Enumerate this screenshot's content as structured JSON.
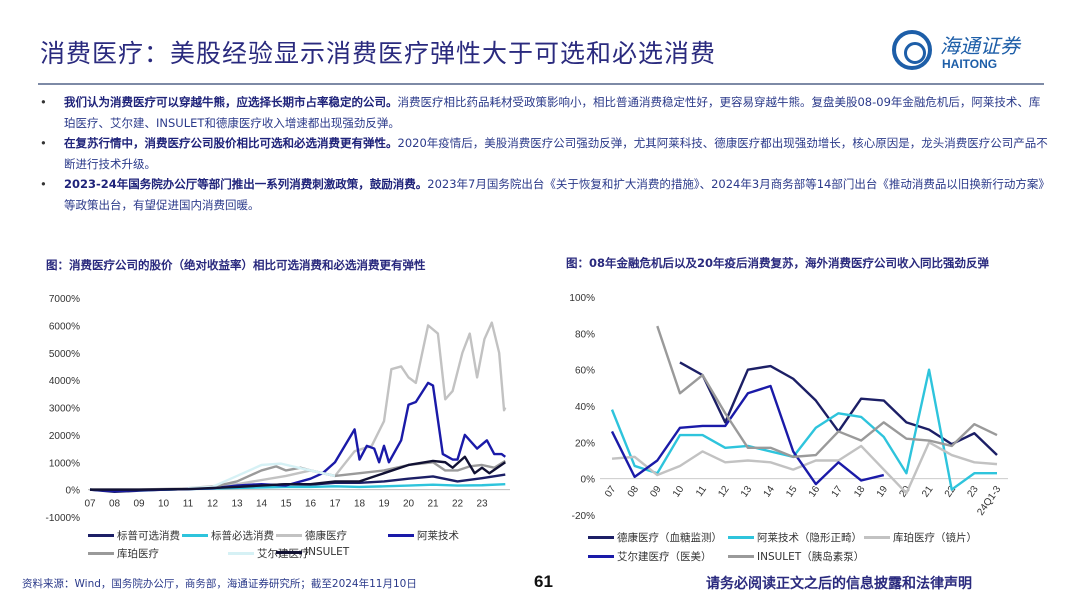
{
  "header": {
    "title": "消费医疗：美股经验显示消费医疗弹性大于可选和必选消费",
    "logo_cn": "海通证券",
    "logo_en": "HAITONG"
  },
  "bullets": [
    {
      "bold": "我们认为消费医疗可以穿越牛熊，应选择长期市占率稳定的公司。",
      "text": "消费医疗相比药品耗材受政策影响小，相比普通消费稳定性好，更容易穿越牛熊。复盘美股08-09年金融危机后，阿莱技术、库珀医疗、艾尔建、INSULET和德康医疗收入增速都出现强劲反弹。"
    },
    {
      "bold": "在复苏行情中，消费医疗公司股价相比可选和必选消费更有弹性。",
      "text": "2020年疫情后，美股消费医疗公司强劲反弹，尤其阿莱科技、德康医疗都出现强劲增长，核心原因是，龙头消费医疗公司产品不断进行技术升级。"
    },
    {
      "bold": "2023-24年国务院办公厅等部门推出一系列消费刺激政策，鼓励消费。",
      "text": "2023年7月国务院出台《关于恢复和扩大消费的措施》、2024年3月商务部等14部门出台《推动消费品以旧换新行动方案》等政策出台，有望促进国内消费回暖。"
    }
  ],
  "chart_data": [
    {
      "type": "line",
      "title": "图：消费医疗公司的股价（绝对收益率）相比可选消费和必选消费更有弹性",
      "xlabel": "",
      "ylabel": "",
      "categories": [
        "07",
        "08",
        "09",
        "10",
        "11",
        "12",
        "13",
        "14",
        "15",
        "16",
        "17",
        "18",
        "19",
        "20",
        "21",
        "22",
        "23"
      ],
      "yticks": [
        "-1000%",
        "0%",
        "1000%",
        "2000%",
        "3000%",
        "4000%",
        "5000%",
        "6000%",
        "7000%"
      ],
      "ylim": [
        -1000,
        7000
      ],
      "grid": false,
      "legend": "bottom",
      "series": [
        {
          "name": "标普可选消费",
          "color": "#1c1f66",
          "x": [
            7,
            8,
            9,
            10,
            11,
            12,
            13,
            14,
            15,
            16,
            17,
            18,
            19,
            20,
            21,
            22,
            23,
            24
          ],
          "values": [
            0,
            -80,
            -40,
            0,
            20,
            50,
            120,
            150,
            200,
            180,
            250,
            250,
            300,
            400,
            480,
            300,
            420,
            550
          ]
        },
        {
          "name": "标普必选消费",
          "color": "#2ec4dc",
          "x": [
            7,
            8,
            9,
            10,
            11,
            12,
            13,
            14,
            15,
            16,
            17,
            18,
            19,
            20,
            21,
            22,
            23,
            24
          ],
          "values": [
            0,
            -30,
            -20,
            0,
            20,
            40,
            60,
            80,
            100,
            100,
            120,
            100,
            120,
            150,
            180,
            150,
            160,
            200
          ]
        },
        {
          "name": "德康医疗",
          "color": "#c2c2c2",
          "x": [
            7,
            9,
            11,
            13,
            15,
            16,
            17,
            17.8,
            18.5,
            19,
            19.3,
            19.7,
            20,
            20.3,
            20.8,
            21.2,
            21.5,
            21.8,
            22.2,
            22.5,
            22.8,
            23.1,
            23.4,
            23.7,
            23.9,
            24
          ],
          "values": [
            0,
            0,
            50,
            200,
            500,
            700,
            500,
            1400,
            1600,
            2500,
            4400,
            4500,
            4100,
            3900,
            6000,
            5700,
            3300,
            3600,
            5000,
            5700,
            4100,
            5500,
            6100,
            5000,
            2900,
            3000
          ]
        },
        {
          "name": "阿莱技术",
          "color": "#1a1aa8",
          "x": [
            7,
            8,
            9,
            10,
            11,
            12,
            13,
            14,
            15,
            16,
            16.5,
            17,
            17.8,
            18,
            18.3,
            18.6,
            18.8,
            19,
            19.2,
            19.7,
            20,
            20.3,
            20.8,
            21,
            21.4,
            21.8,
            22,
            22.3,
            22.8,
            23.2,
            23.5,
            23.8,
            24
          ],
          "values": [
            0,
            -50,
            -20,
            0,
            20,
            50,
            150,
            200,
            150,
            400,
            600,
            1000,
            2200,
            1100,
            1600,
            1500,
            1000,
            1600,
            1000,
            1800,
            3100,
            3200,
            3900,
            3800,
            1300,
            1100,
            1100,
            2000,
            1500,
            1800,
            1300,
            1300,
            1200
          ]
        },
        {
          "name": "库珀医疗",
          "color": "#9a9a9a",
          "x": [
            12,
            13,
            14,
            14.6,
            15,
            15.6,
            16,
            17,
            18,
            19,
            20,
            21,
            21.5,
            22,
            22.5,
            23,
            23.5,
            24
          ],
          "values": [
            100,
            300,
            700,
            850,
            700,
            800,
            700,
            500,
            600,
            700,
            900,
            1000,
            700,
            700,
            850,
            900,
            800,
            1050
          ]
        },
        {
          "name": "艾尔建医疗",
          "color": "#d6f1f5",
          "x": [
            11,
            12,
            13,
            14,
            14.8,
            15.5,
            16,
            17
          ],
          "values": [
            50,
            100,
            500,
            900,
            950,
            800,
            700,
            500
          ]
        },
        {
          "name": "INSULET",
          "color": "#111133",
          "x": [
            7,
            9,
            11,
            13,
            15,
            16,
            17,
            18,
            19,
            20,
            21,
            21.5,
            21.8,
            22.3,
            22.7,
            23,
            23.3,
            24
          ],
          "values": [
            0,
            0,
            20,
            100,
            200,
            200,
            300,
            300,
            600,
            900,
            1050,
            1000,
            800,
            1200,
            600,
            800,
            600,
            1000
          ]
        }
      ]
    },
    {
      "type": "line",
      "title": "图：08年金融危机后以及20年疫后消费复苏，海外消费医疗公司收入同比强劲反弹",
      "xlabel": "",
      "ylabel": "",
      "categories": [
        "07",
        "08",
        "09",
        "10",
        "11",
        "12",
        "13",
        "14",
        "15",
        "16",
        "17",
        "18",
        "19",
        "20",
        "21",
        "22",
        "23",
        "24Q1-3"
      ],
      "yticks": [
        "-20%",
        "0%",
        "20%",
        "40%",
        "60%",
        "80%",
        "100%"
      ],
      "ylim": [
        -20,
        100
      ],
      "grid": false,
      "legend": "bottom",
      "series": [
        {
          "name": "德康医疗（血糖监测）",
          "color": "#1c1f66",
          "values": [
            null,
            null,
            null,
            64,
            57,
            31,
            60,
            62,
            55,
            43,
            26,
            44,
            43,
            31,
            27,
            19,
            25,
            13
          ]
        },
        {
          "name": "阿莱技术（隐形正畸）",
          "color": "#2ec4dc",
          "values": [
            38,
            7,
            3,
            24,
            24,
            17,
            18,
            15,
            12,
            28,
            36,
            34,
            23,
            3,
            60,
            -6,
            3,
            3
          ]
        },
        {
          "name": "库珀医疗（镜片）",
          "color": "#c2c2c2",
          "values": [
            11,
            12,
            2,
            7,
            15,
            9,
            10,
            9,
            5,
            10,
            10,
            18,
            5,
            -8,
            20,
            13,
            9,
            8
          ]
        },
        {
          "name": "艾尔建医疗（医美）",
          "color": "#1a1aa8",
          "values": [
            26,
            1,
            10,
            28,
            29,
            29,
            47,
            51,
            15,
            -3,
            9,
            -1,
            2,
            null,
            null,
            null,
            null,
            null
          ]
        },
        {
          "name": "INSULET（胰岛素泵）",
          "color": "#9a9a9a",
          "values": [
            null,
            null,
            84,
            47,
            57,
            36,
            17,
            17,
            12,
            13,
            26,
            21,
            31,
            22,
            21,
            18,
            30,
            24
          ]
        }
      ]
    }
  ],
  "footer": {
    "source": "资料来源：Wind，国务院办公厅，商务部，海通证券研究所；截至2024年11月10日",
    "page": "61",
    "disclaimer": "请务必阅读正文之后的信息披露和法律声明"
  }
}
